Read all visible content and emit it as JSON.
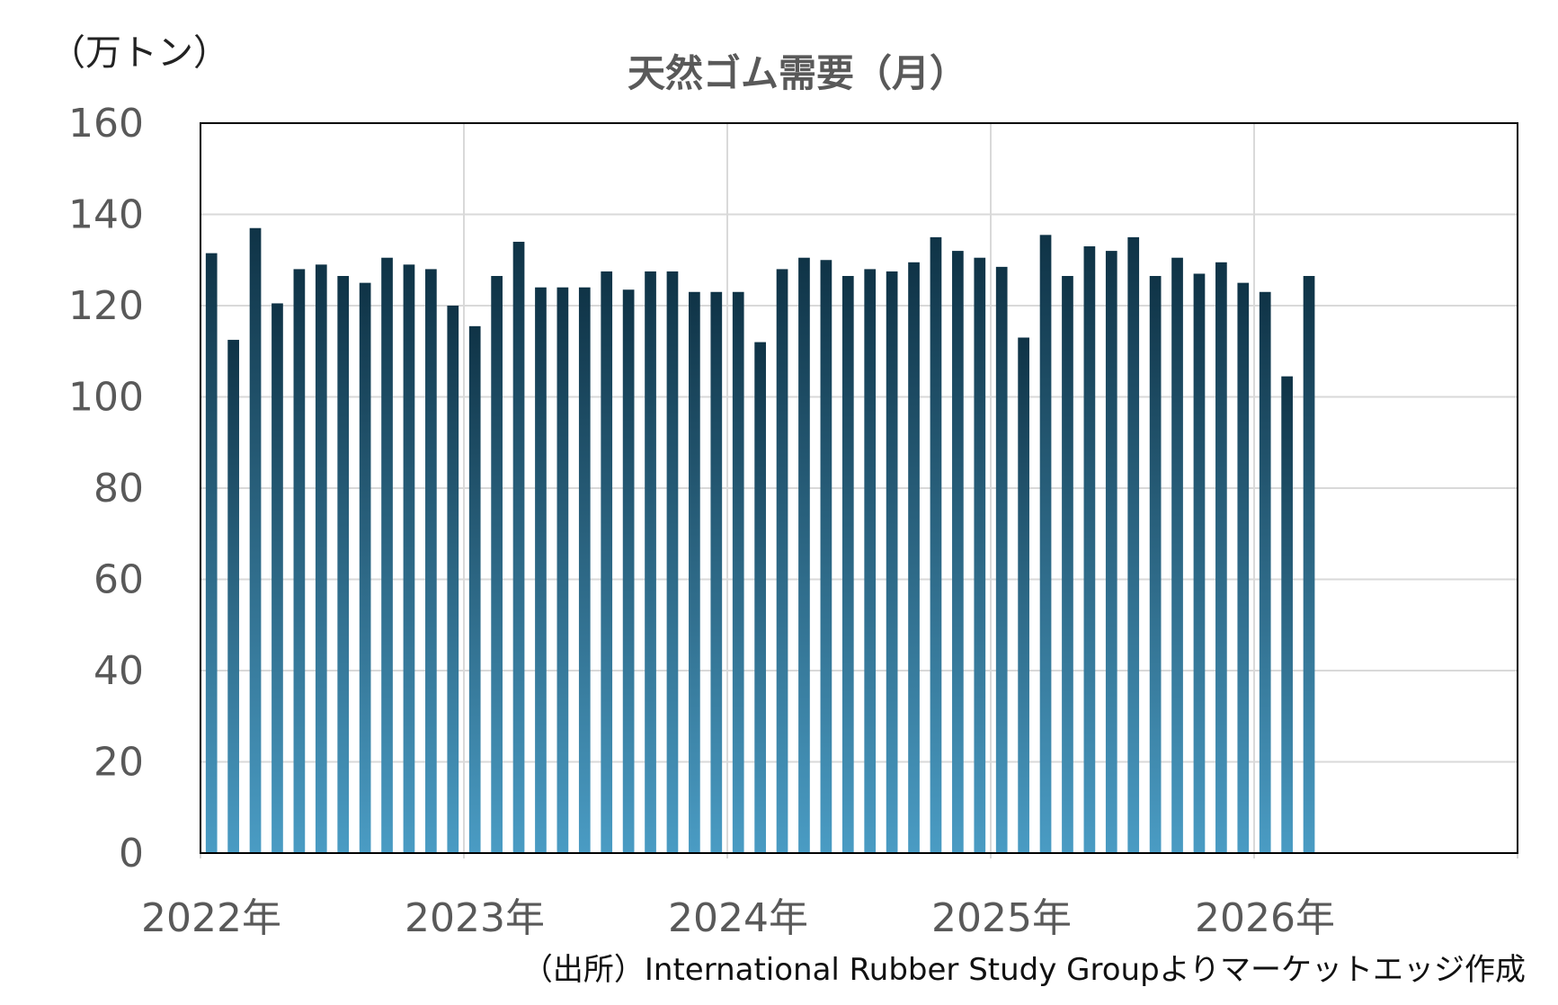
{
  "chart_data": {
    "type": "bar",
    "title": "天然ゴム需要（月）",
    "unit_label": "（万トン）",
    "source": "（出所）International Rubber Study Groupよりマーケットエッジ作成",
    "ylim": [
      0,
      160
    ],
    "y_ticks": [
      "0",
      "20",
      "40",
      "60",
      "80",
      "100",
      "120",
      "140",
      "160"
    ],
    "x_ticks": [
      "2022年",
      "2023年",
      "2024年",
      "2025年",
      "2026年"
    ],
    "x_range_months": 60,
    "grid": true,
    "bar_color_top": "#0f3346",
    "bar_color_bottom": "#4a9cc4",
    "grid_color": "#d9d9d9",
    "values": [
      131.5,
      112.5,
      137.0,
      120.5,
      128.0,
      129.0,
      126.5,
      125.0,
      130.5,
      129.0,
      128.0,
      120.0,
      115.5,
      126.5,
      134.0,
      124.0,
      124.0,
      124.0,
      127.5,
      123.5,
      127.5,
      127.5,
      123.0,
      123.0,
      123.0,
      112.0,
      128.0,
      130.5,
      130.0,
      126.5,
      128.0,
      127.5,
      129.5,
      135.0,
      132.0,
      130.5,
      128.5,
      113.0,
      135.5,
      126.5,
      133.0,
      132.0,
      135.0,
      126.5,
      130.5,
      127.0,
      129.5,
      125.0,
      123.0,
      104.5,
      126.5
    ]
  }
}
